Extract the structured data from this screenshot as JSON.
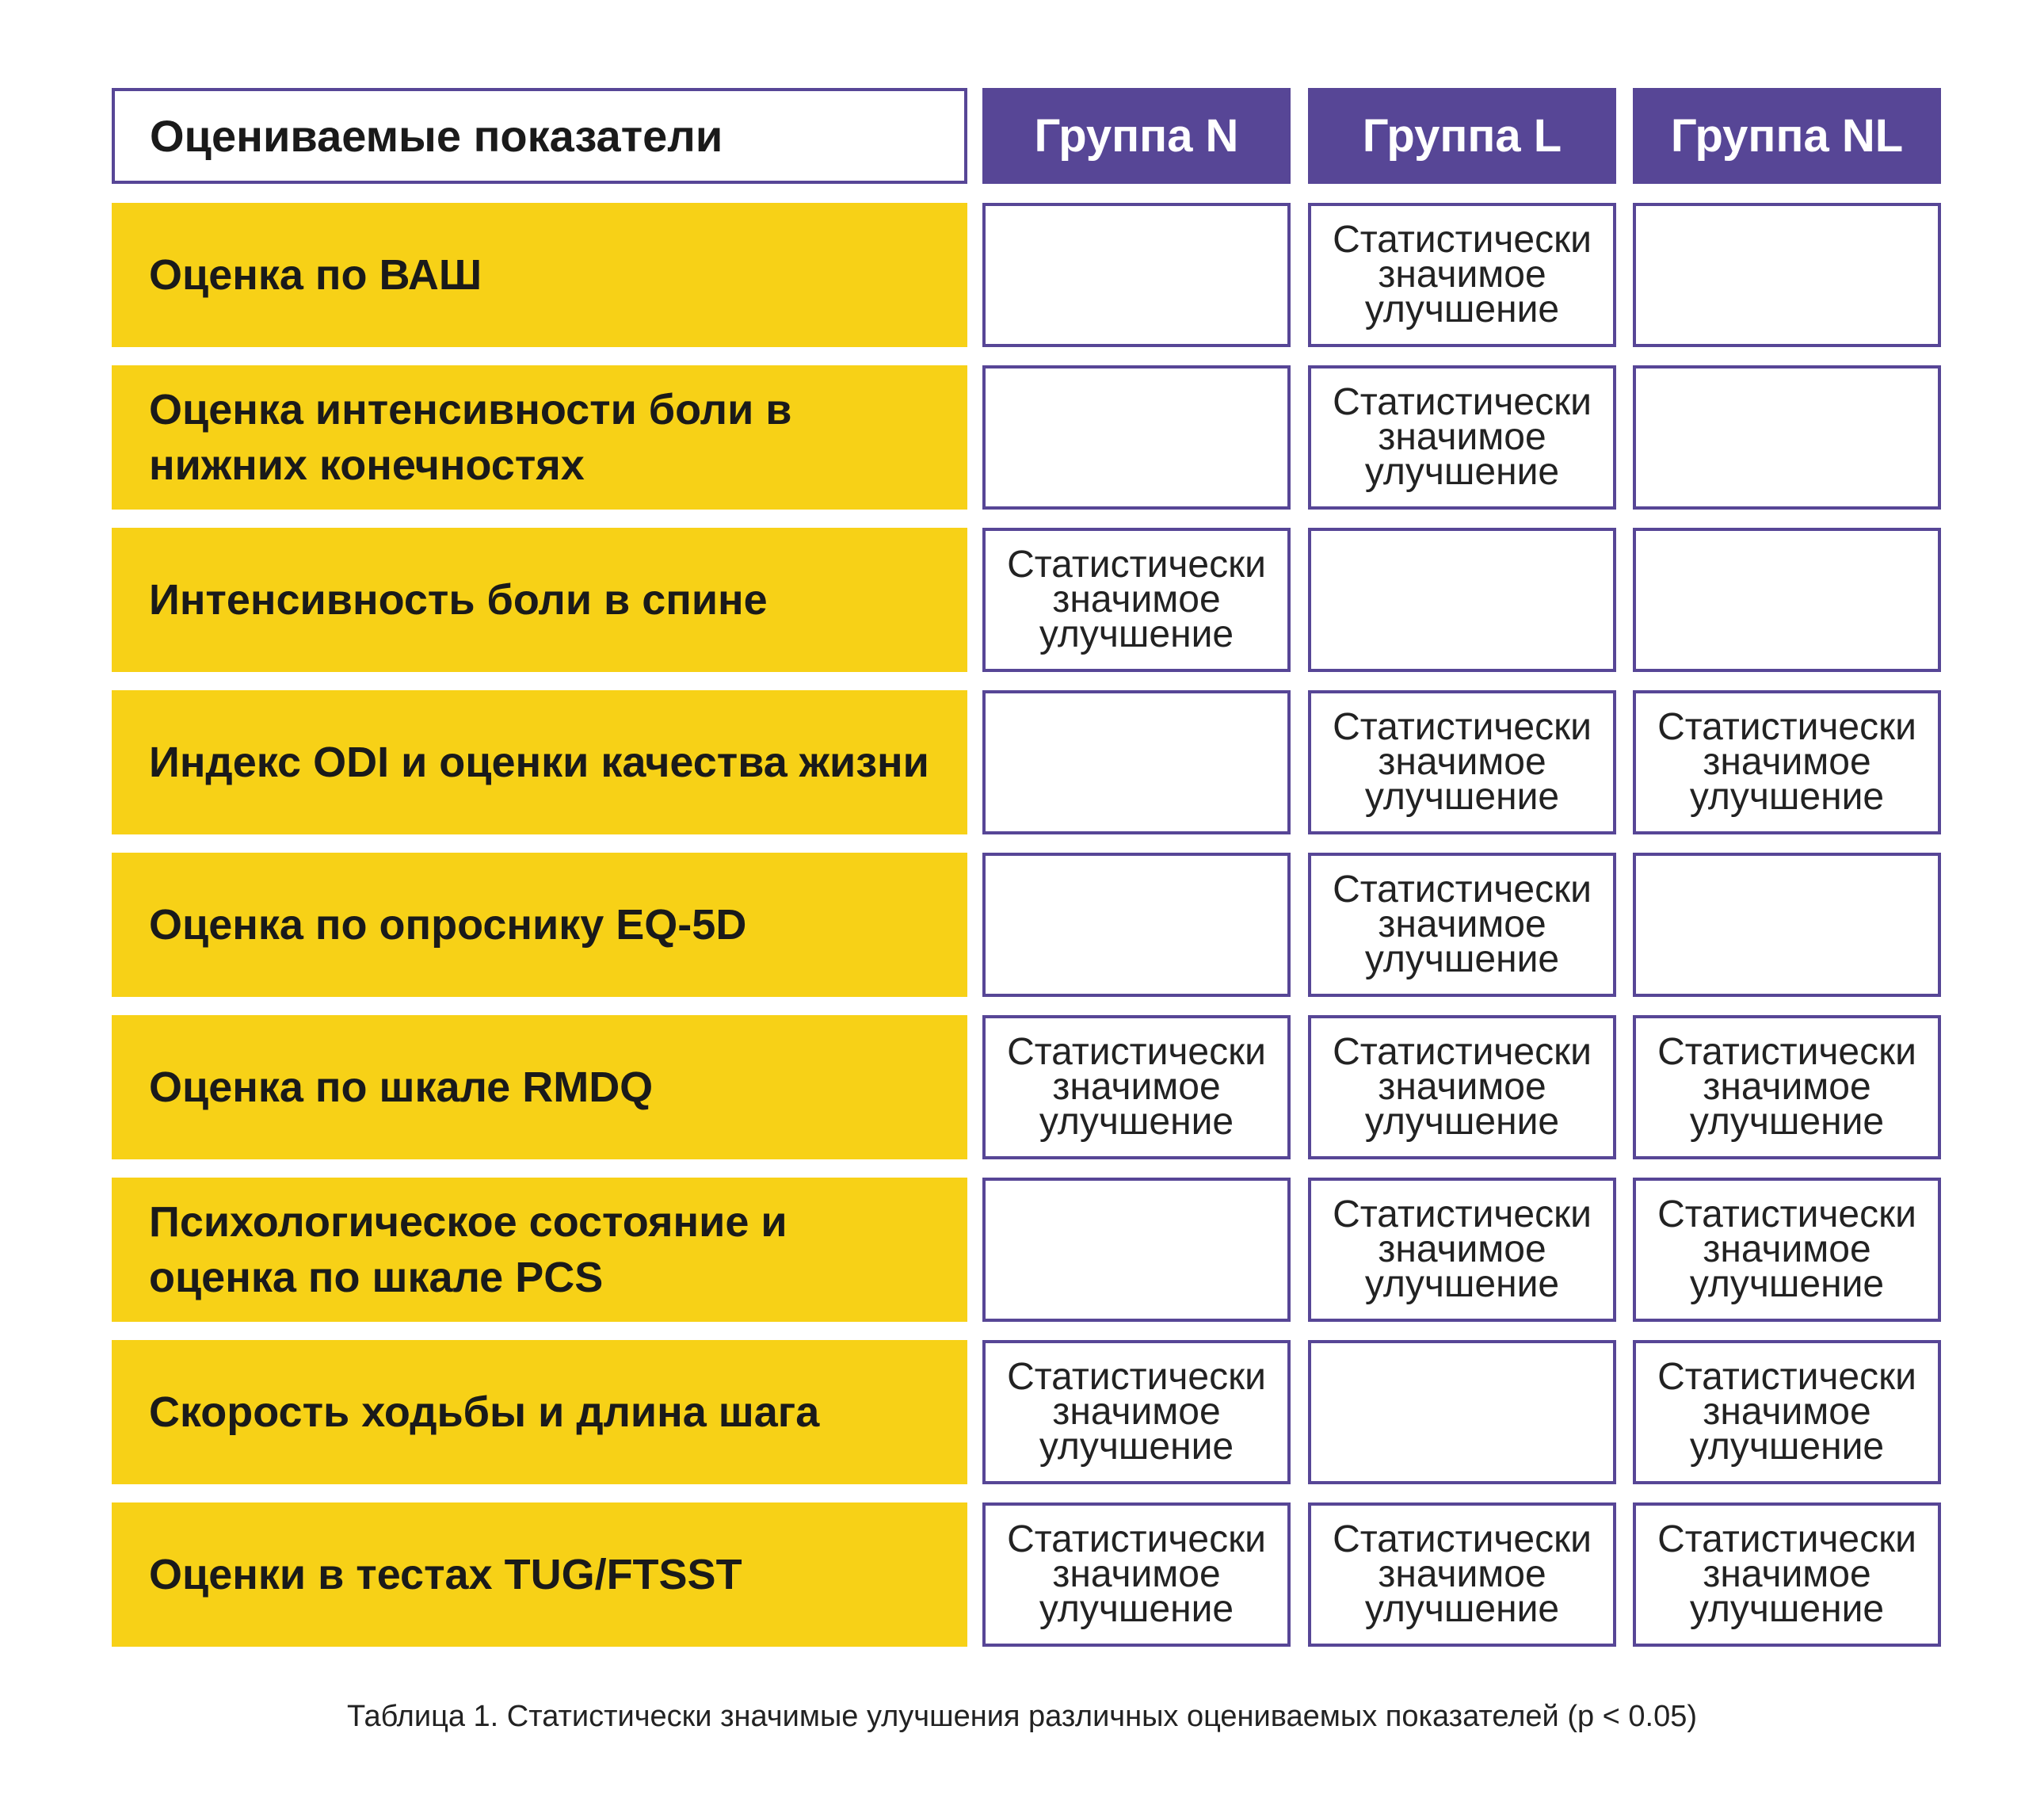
{
  "colors": {
    "header": "#574696",
    "row": "#F7D117",
    "border": "#574696"
  },
  "header": {
    "label": "Оцениваемые показатели",
    "groups": [
      "Группа N",
      "Группа L",
      "Группа NL"
    ]
  },
  "rows": [
    {
      "label": "Оценка по ВАШ",
      "cells": [
        "",
        "Статистически значимое улучшение",
        ""
      ]
    },
    {
      "label": "Оценка интенсивности боли в нижних конечностях",
      "cells": [
        "",
        "Статистически значимое улучшение",
        ""
      ]
    },
    {
      "label": "Интенсивность боли в спине",
      "cells": [
        "Статистически значимое улучшение",
        "",
        ""
      ]
    },
    {
      "label": "Индекс ODI и оценки качества жизни",
      "cells": [
        "",
        "Статистически значимое улучшение",
        "Статистически значимое улучшение"
      ]
    },
    {
      "label": "Оценка по опроснику EQ-5D",
      "cells": [
        "",
        "Статистически значимое улучшение",
        ""
      ]
    },
    {
      "label": "Оценка по шкале RMDQ",
      "cells": [
        "Статистически значимое улучшение",
        "Статистически значимое улучшение",
        "Статистически значимое улучшение"
      ]
    },
    {
      "label": "Психологическое состояние и оценка по шкале PCS",
      "cells": [
        "",
        "Статистически значимое улучшение",
        "Статистически значимое улучшение"
      ]
    },
    {
      "label": "Скорость ходьбы и длина шага",
      "cells": [
        "Статистически значимое улучшение",
        "",
        "Статистически значимое улучшение"
      ]
    },
    {
      "label": "Оценки в тестах TUG/FTSST",
      "cells": [
        "Статистически значимое улучшение",
        "Статистически значимое улучшение",
        "Статистически значимое улучшение"
      ]
    }
  ],
  "caption": "Таблица 1. Статистически значимые улучшения различных оцениваемых показателей (p < 0.05)"
}
